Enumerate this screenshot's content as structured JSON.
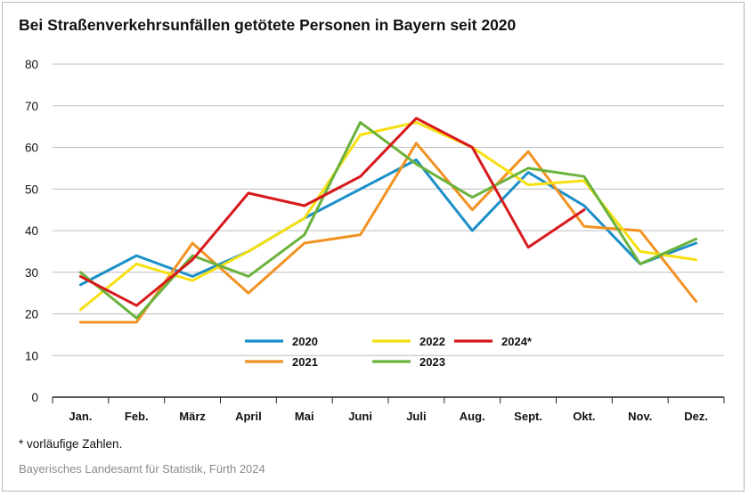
{
  "title": "Bei Straßenverkehrsunfällen getötete Personen in Bayern seit 2020",
  "footnote": "* vorläufige Zahlen.",
  "source": "Bayerisches Landesamt für Statistik, Fürth 2024",
  "chart_data": {
    "type": "line",
    "title": "Bei Straßenverkehrsunfällen getötete Personen in Bayern seit 2020",
    "xlabel": "",
    "ylabel": "",
    "ylim": [
      0,
      80
    ],
    "yticks": [
      0,
      10,
      20,
      30,
      40,
      50,
      60,
      70,
      80
    ],
    "grid": true,
    "legend_placement": "bottom-center",
    "categories": [
      "Jan.",
      "Feb.",
      "März",
      "April",
      "Mai",
      "Juni",
      "Juli",
      "Aug.",
      "Sept.",
      "Okt.",
      "Nov.",
      "Dez."
    ],
    "series": [
      {
        "name": "2020",
        "color": "#1a8fc8",
        "values": [
          27,
          34,
          29,
          35,
          43,
          50,
          57,
          40,
          54,
          46,
          32,
          37
        ]
      },
      {
        "name": "2021",
        "color": "#f29222",
        "values": [
          18,
          18,
          37,
          25,
          37,
          39,
          61,
          45,
          59,
          41,
          40,
          23
        ]
      },
      {
        "name": "2022",
        "color": "#f6df12",
        "values": [
          21,
          32,
          28,
          35,
          43,
          63,
          66,
          60,
          51,
          52,
          35,
          33
        ]
      },
      {
        "name": "2023",
        "color": "#6ab23c",
        "values": [
          30,
          19,
          34,
          29,
          39,
          66,
          56,
          48,
          55,
          53,
          32,
          38
        ]
      },
      {
        "name": "2024*",
        "color": "#d7191c",
        "values": [
          29,
          22,
          33,
          49,
          46,
          53,
          67,
          60,
          36,
          45,
          null,
          null
        ]
      }
    ]
  }
}
